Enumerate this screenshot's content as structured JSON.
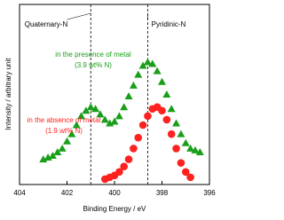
{
  "chart_data": {
    "type": "scatter",
    "xlabel": "Binding Energy / eV",
    "ylabel": "Intensity / arbitrary unit",
    "xlim": [
      404,
      396
    ],
    "xticks": [
      404,
      402,
      400,
      398,
      396
    ],
    "ylim": [
      0,
      100
    ],
    "annotations": [
      {
        "text": "Quaternary-N",
        "x": 401.0
      },
      {
        "text": "Pyridinic-N",
        "x": 398.6
      }
    ],
    "series": [
      {
        "name": "in the presence of metal",
        "detail": "(3.9 wt% N)",
        "color": "#1a9e1a",
        "marker": "triangle",
        "x": [
          403.0,
          402.8,
          402.6,
          402.4,
          402.2,
          402.0,
          401.8,
          401.6,
          401.4,
          401.2,
          401.0,
          400.8,
          400.6,
          400.4,
          400.2,
          400.0,
          399.8,
          399.6,
          399.4,
          399.2,
          399.0,
          398.8,
          398.6,
          398.4,
          398.2,
          398.0,
          397.8,
          397.6,
          397.4,
          397.2,
          397.0,
          396.8,
          396.6,
          396.4
        ],
        "values": [
          14,
          15,
          16,
          18,
          20,
          24,
          28,
          33,
          38,
          41,
          43,
          42,
          39,
          36,
          34,
          35,
          38,
          43,
          49,
          55,
          61,
          66,
          68,
          67,
          63,
          57,
          50,
          42,
          34,
          28,
          23,
          20,
          19,
          18
        ]
      },
      {
        "name": "in the absence of metal",
        "detail": "(1.9 wt% N)",
        "color": "#ff2020",
        "marker": "circle",
        "x": [
          400.4,
          400.2,
          400.0,
          399.8,
          399.6,
          399.4,
          399.2,
          399.0,
          398.8,
          398.6,
          398.4,
          398.2,
          398.0,
          397.8,
          397.6,
          397.4,
          397.2,
          397.0,
          396.8
        ],
        "values": [
          3,
          4,
          5,
          7,
          10,
          14,
          20,
          26,
          33,
          38,
          42,
          43,
          41,
          36,
          28,
          20,
          12,
          7,
          4
        ]
      }
    ]
  }
}
